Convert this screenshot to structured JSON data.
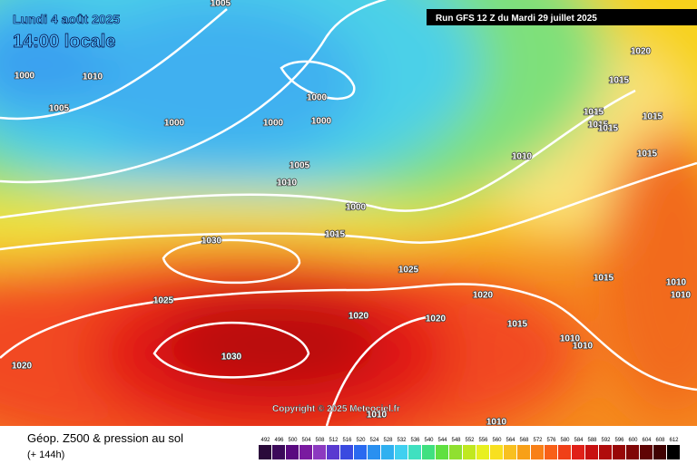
{
  "header": {
    "date": "Lundi 4 août 2025",
    "time": "14:00 locale",
    "run": "Run GFS 12 Z du Mardi 29 juillet 2025"
  },
  "isobar_labels": [
    1005,
    1010,
    1000,
    1005,
    1000,
    1000,
    1000,
    1000,
    1005,
    1010,
    1000,
    1015,
    1030,
    1025,
    1020,
    1030,
    1020,
    1025,
    1020,
    1020,
    1015,
    1010,
    1010,
    1010,
    1010,
    1010,
    1015,
    1020,
    1015,
    1015,
    1015,
    1015,
    1015,
    1015,
    1010,
    1010
  ],
  "copyright": "Copyright © 2025 Meteociel.fr",
  "footer": {
    "title": "Géop. Z500 & pression au sol",
    "lead": "(+ 144h)"
  },
  "scale": [
    492,
    496,
    500,
    504,
    508,
    512,
    516,
    520,
    524,
    528,
    532,
    536,
    540,
    544,
    548,
    552,
    556,
    560,
    564,
    568,
    572,
    576,
    580,
    584,
    588,
    592,
    596,
    600,
    604,
    608,
    612
  ]
}
